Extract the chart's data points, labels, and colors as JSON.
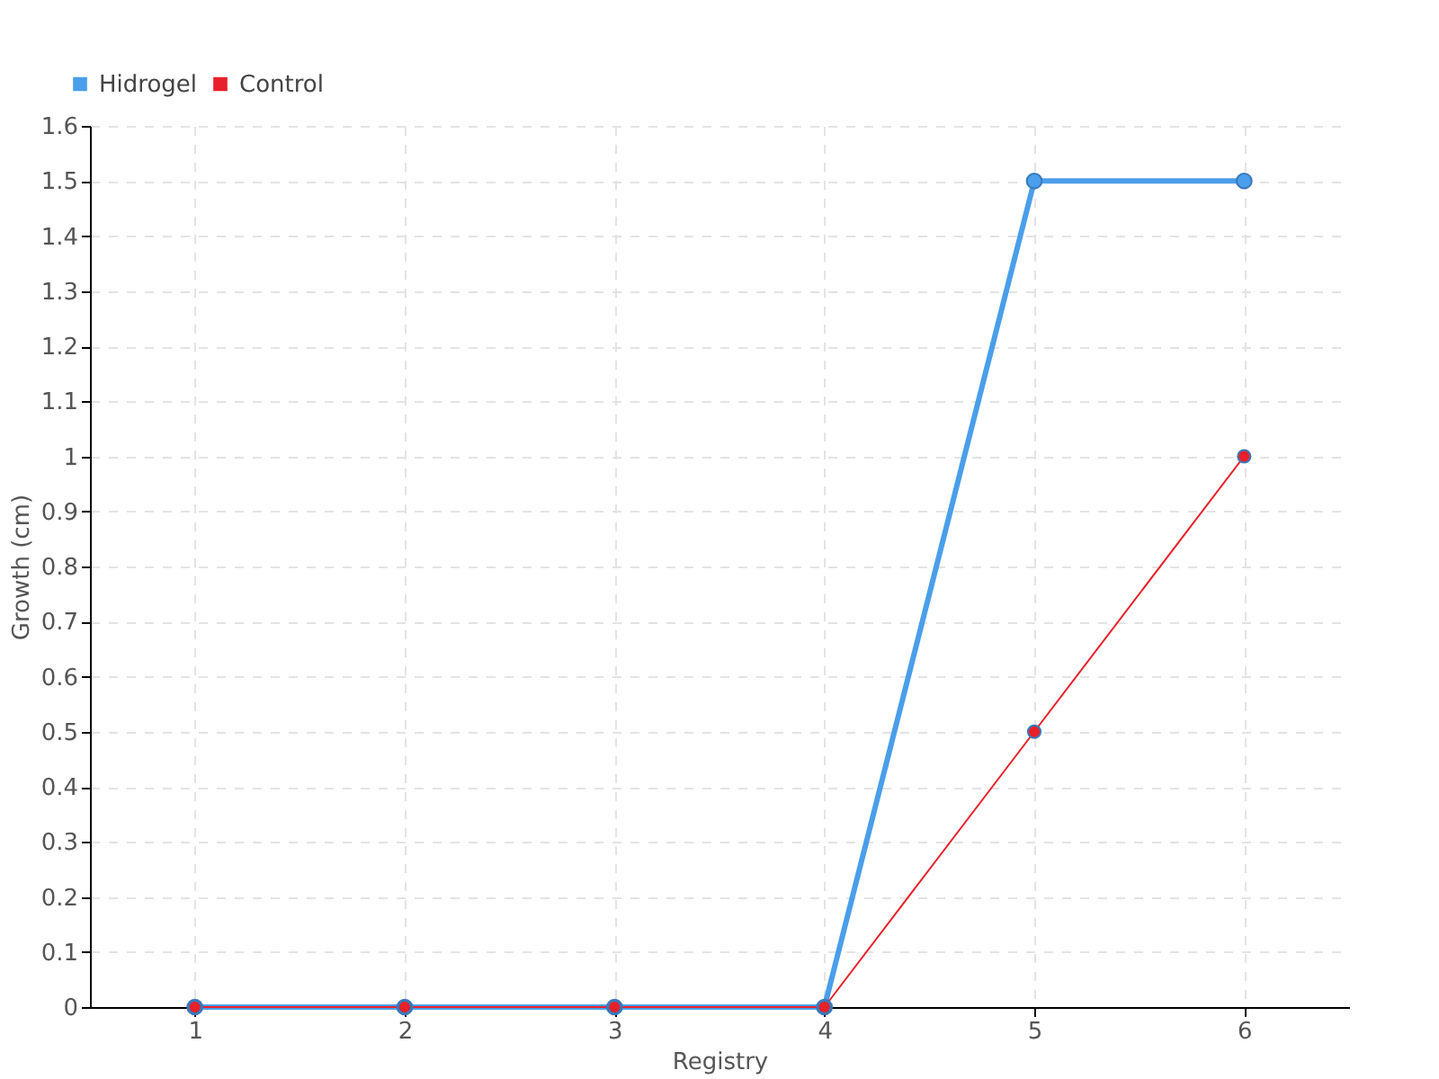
{
  "chart_data": {
    "type": "line",
    "xlabel": "Registry",
    "ylabel": "Growth (cm)",
    "x": [
      1,
      2,
      3,
      4,
      5,
      6
    ],
    "series": [
      {
        "name": "Hidrogel",
        "color": "#4a9eea",
        "values": [
          0,
          0,
          0,
          0,
          1.5,
          1.5
        ]
      },
      {
        "name": "Control",
        "color": "#e8202a",
        "values": [
          0,
          0,
          0,
          0,
          0.5,
          1
        ]
      }
    ],
    "xlim": [
      0.5,
      6.5
    ],
    "xticks": [
      1,
      2,
      3,
      4,
      5,
      6
    ],
    "ylim": [
      0,
      1.6
    ],
    "yticks": [
      0,
      0.1,
      0.2,
      0.3,
      0.4,
      0.5,
      0.6,
      0.7,
      0.8,
      0.9,
      1,
      1.1,
      1.2,
      1.3,
      1.4,
      1.5,
      1.6
    ],
    "grid": true,
    "legend": "top left",
    "marker": "circle",
    "line_style": "solid"
  }
}
